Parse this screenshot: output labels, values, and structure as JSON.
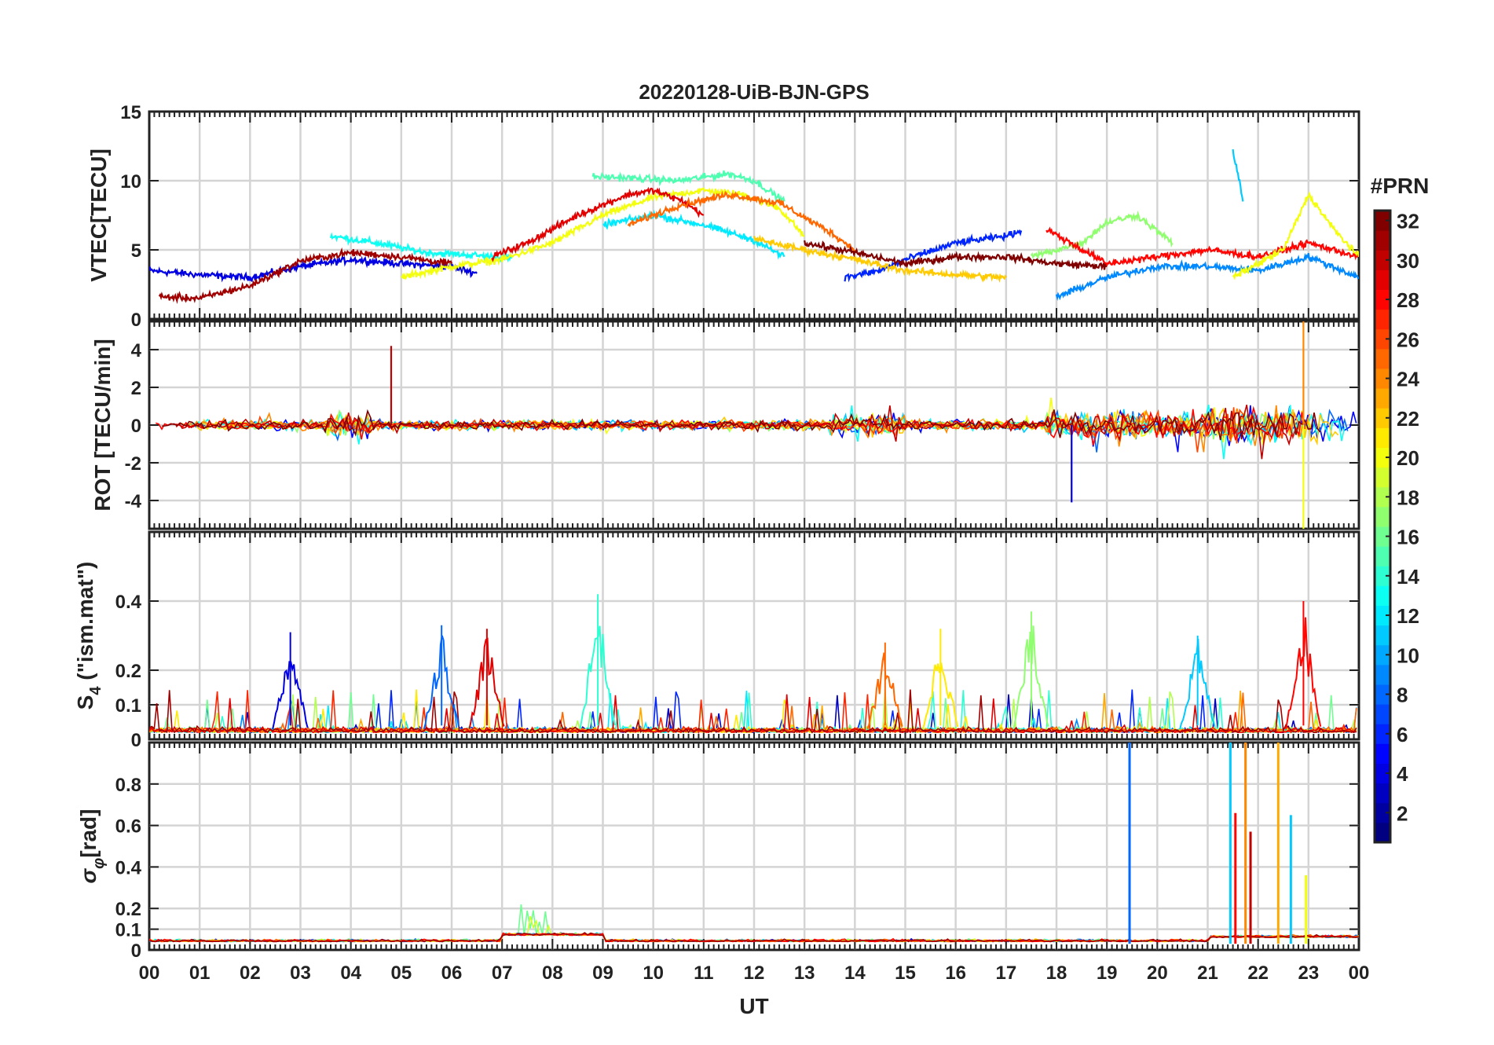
{
  "figure": {
    "title": "20220128-UiB-BJN-GPS",
    "xlabel": "UT",
    "x_ticks": [
      "00",
      "01",
      "02",
      "03",
      "04",
      "05",
      "06",
      "07",
      "08",
      "09",
      "10",
      "11",
      "12",
      "13",
      "14",
      "15",
      "16",
      "17",
      "18",
      "19",
      "20",
      "21",
      "22",
      "23",
      "00"
    ]
  },
  "colorbar": {
    "label": "#PRN",
    "range": [
      1,
      32
    ],
    "ticks": [
      "2",
      "4",
      "6",
      "8",
      "10",
      "12",
      "14",
      "16",
      "18",
      "20",
      "22",
      "24",
      "26",
      "28",
      "30",
      "32"
    ],
    "colormap": "jet"
  },
  "chart_data": [
    {
      "type": "line",
      "panel": "VTEC",
      "ylabel": "VTEC[TECU]",
      "ylim": [
        0,
        15
      ],
      "y_ticks": [
        "0",
        "5",
        "10",
        "15"
      ],
      "x_range_hours": [
        0,
        24
      ],
      "grid": true,
      "series": [
        {
          "prn": 4,
          "x": [
            0,
            1,
            2,
            3,
            4,
            5,
            6,
            6.5
          ],
          "y": [
            3.5,
            3.2,
            3.0,
            3.8,
            4.3,
            4.0,
            3.8,
            3.3
          ]
        },
        {
          "prn": 13,
          "x": [
            3.6,
            4.5,
            5.5,
            6.5,
            7.2
          ],
          "y": [
            6.0,
            5.5,
            4.8,
            4.6,
            4.4
          ]
        },
        {
          "prn": 20,
          "x": [
            5,
            6,
            7,
            8,
            9,
            10,
            11,
            11.8,
            12.5,
            13
          ],
          "y": [
            3.0,
            3.8,
            4.3,
            5.5,
            7.5,
            8.8,
            9.3,
            9.0,
            8.0,
            6.0
          ]
        },
        {
          "prn": 15,
          "x": [
            8.8,
            9.5,
            10.5,
            11.5,
            12,
            12.6
          ],
          "y": [
            10.3,
            10.2,
            10.0,
            10.5,
            10.0,
            8.5
          ]
        },
        {
          "prn": 29,
          "x": [
            6.8,
            7.5,
            8.5,
            9.5,
            10,
            10.6,
            11
          ],
          "y": [
            4.5,
            5.5,
            7.5,
            9.0,
            9.3,
            8.5,
            7.5
          ]
        },
        {
          "prn": 31,
          "x": [
            0.2,
            1,
            2,
            3,
            4,
            5,
            6
          ],
          "y": [
            1.6,
            1.5,
            2.4,
            4.2,
            4.8,
            4.5,
            4.0
          ]
        },
        {
          "prn": 12,
          "x": [
            9,
            10,
            11,
            12,
            12.6
          ],
          "y": [
            6.8,
            7.5,
            6.8,
            5.7,
            4.5
          ]
        },
        {
          "prn": 25,
          "x": [
            9.5,
            10.5,
            11.5,
            12.5,
            13.5,
            14
          ],
          "y": [
            6.8,
            8.2,
            9.0,
            8.4,
            6.3,
            5.0
          ]
        },
        {
          "prn": 6,
          "x": [
            13.8,
            14.5,
            15,
            16,
            17,
            17.3
          ],
          "y": [
            3.0,
            3.5,
            4.3,
            5.5,
            6.0,
            6.4
          ]
        },
        {
          "prn": 32,
          "x": [
            13,
            14,
            15,
            16,
            17,
            18,
            19
          ],
          "y": [
            5.5,
            4.8,
            4.0,
            4.5,
            4.5,
            4.0,
            3.8
          ]
        },
        {
          "prn": 22,
          "x": [
            12,
            13,
            14,
            15,
            16,
            17
          ],
          "y": [
            5.8,
            5.0,
            4.3,
            3.5,
            3.2,
            3.0
          ]
        },
        {
          "prn": 17,
          "x": [
            17.5,
            18.5,
            19,
            19.6,
            20.3
          ],
          "y": [
            4.5,
            5.5,
            7.0,
            7.5,
            5.5
          ]
        },
        {
          "prn": 9,
          "x": [
            18,
            19,
            20,
            21,
            22,
            23,
            24
          ],
          "y": [
            1.6,
            3.0,
            3.8,
            3.8,
            3.5,
            4.5,
            3.0
          ]
        },
        {
          "prn": 28,
          "x": [
            17.8,
            19,
            20,
            21,
            22,
            23,
            24
          ],
          "y": [
            6.5,
            4.0,
            4.5,
            5.0,
            4.5,
            5.5,
            4.5
          ]
        },
        {
          "prn": 11,
          "x": [
            21.5,
            21.6,
            21.7
          ],
          "y": [
            12.1,
            10.5,
            8.5
          ]
        },
        {
          "prn": 20,
          "x": [
            21.5,
            22.5,
            23,
            23.5,
            24
          ],
          "y": [
            3.0,
            5.0,
            9.0,
            6.5,
            4.5
          ]
        }
      ]
    },
    {
      "type": "line",
      "panel": "ROT",
      "ylabel": "ROT [TECU/min]",
      "ylim": [
        -5.5,
        5.5
      ],
      "y_ticks": [
        "-4",
        "-2",
        "0",
        "2",
        "4"
      ],
      "x_range_hours": [
        0,
        24
      ],
      "grid": true,
      "annotations": [
        {
          "x": 4.8,
          "y": 4.2,
          "prn": 30
        },
        {
          "x": 18.3,
          "y": -4.1,
          "prn": 4
        },
        {
          "x": 22.9,
          "y": 5.5,
          "prn": 24
        },
        {
          "x": 22.9,
          "y": -5.5,
          "prn": 20
        }
      ]
    },
    {
      "type": "line",
      "panel": "S4",
      "ylabel": "S4 (\"ism.mat\")",
      "ylabel_main": "S",
      "ylabel_sub": "4",
      "ylabel_rest": " (\"ism.mat\")",
      "ylim": [
        0,
        0.6
      ],
      "y_ticks": [
        "0",
        "0.1",
        "0.2",
        "0.4"
      ],
      "x_range_hours": [
        0,
        24
      ],
      "grid": true,
      "peaks": [
        {
          "x": 2.8,
          "y": 0.31,
          "prn": 4
        },
        {
          "x": 5.8,
          "y": 0.33,
          "prn": 8
        },
        {
          "x": 6.7,
          "y": 0.32,
          "prn": 29
        },
        {
          "x": 8.9,
          "y": 0.42,
          "prn": 14
        },
        {
          "x": 14.6,
          "y": 0.28,
          "prn": 25
        },
        {
          "x": 15.7,
          "y": 0.32,
          "prn": 21
        },
        {
          "x": 17.5,
          "y": 0.37,
          "prn": 17
        },
        {
          "x": 20.8,
          "y": 0.3,
          "prn": 11
        },
        {
          "x": 22.9,
          "y": 0.4,
          "prn": 28
        }
      ]
    },
    {
      "type": "line",
      "panel": "sigma_phi",
      "ylabel": "σφ[rad]",
      "ylabel_main": "σ",
      "ylabel_sub": "φ",
      "ylabel_rest": "[rad]",
      "ylim": [
        0,
        1
      ],
      "y_ticks": [
        "0",
        "0.1",
        "0.2",
        "0.4",
        "0.6",
        "0.8"
      ],
      "x_range_hours": [
        0,
        24
      ],
      "grid": true,
      "spikes": [
        {
          "x": 19.45,
          "y": 1.0,
          "prn": 8
        },
        {
          "x": 21.45,
          "y": 1.0,
          "prn": 11
        },
        {
          "x": 21.55,
          "y": 0.66,
          "prn": 28
        },
        {
          "x": 21.75,
          "y": 1.0,
          "prn": 24
        },
        {
          "x": 21.85,
          "y": 0.57,
          "prn": 30
        },
        {
          "x": 22.4,
          "y": 1.0,
          "prn": 23
        },
        {
          "x": 22.65,
          "y": 0.65,
          "prn": 11
        },
        {
          "x": 22.95,
          "y": 0.36,
          "prn": 20
        }
      ]
    }
  ]
}
